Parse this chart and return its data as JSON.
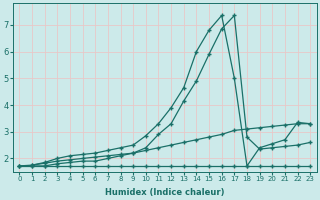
{
  "xlabel": "Humidex (Indice chaleur)",
  "background_color": "#cceaea",
  "grid_color": "#e8c8c8",
  "line_color": "#1a7068",
  "xlim": [
    -0.5,
    23.5
  ],
  "ylim": [
    1.5,
    7.8
  ],
  "yticks": [
    2,
    3,
    4,
    5,
    6,
    7
  ],
  "xticks": [
    0,
    1,
    2,
    3,
    4,
    5,
    6,
    7,
    8,
    9,
    10,
    11,
    12,
    13,
    14,
    15,
    16,
    17,
    18,
    19,
    20,
    21,
    22,
    23
  ],
  "line1_x": [
    0,
    1,
    2,
    3,
    4,
    5,
    6,
    7,
    8,
    9,
    10,
    11,
    12,
    13,
    14,
    15,
    16,
    17,
    18,
    19,
    20,
    21,
    22,
    23
  ],
  "line1_y": [
    1.72,
    1.72,
    1.72,
    1.72,
    1.72,
    1.72,
    1.72,
    1.72,
    1.72,
    1.72,
    1.72,
    1.72,
    1.72,
    1.72,
    1.72,
    1.72,
    1.72,
    1.72,
    1.72,
    1.72,
    1.72,
    1.72,
    1.72,
    1.72
  ],
  "line2_x": [
    0,
    1,
    2,
    3,
    4,
    5,
    6,
    7,
    8,
    9,
    10,
    11,
    12,
    13,
    14,
    15,
    16,
    17,
    18,
    19,
    20,
    21,
    22,
    23
  ],
  "line2_y": [
    1.72,
    1.75,
    1.82,
    1.9,
    1.95,
    2.0,
    2.05,
    2.1,
    2.15,
    2.2,
    2.3,
    2.4,
    2.5,
    2.6,
    2.7,
    2.8,
    2.9,
    3.05,
    3.1,
    3.15,
    3.2,
    3.25,
    3.3,
    3.3
  ],
  "line3_x": [
    1,
    2,
    3,
    4,
    5,
    6,
    7,
    8,
    9,
    10,
    11,
    12,
    13,
    14,
    15,
    16,
    17,
    18,
    19,
    20,
    21,
    22,
    23
  ],
  "line3_y": [
    1.75,
    1.85,
    2.0,
    2.1,
    2.15,
    2.2,
    2.3,
    2.4,
    2.5,
    2.85,
    3.3,
    3.9,
    4.65,
    6.0,
    6.8,
    7.35,
    5.0,
    1.72,
    2.4,
    2.55,
    2.7,
    3.35,
    3.3
  ],
  "line4_x": [
    0,
    1,
    2,
    3,
    4,
    5,
    6,
    7,
    8,
    9,
    10,
    11,
    12,
    13,
    14,
    15,
    16,
    17,
    18,
    19,
    20,
    21,
    22,
    23
  ],
  "line4_y": [
    1.72,
    1.72,
    1.72,
    1.8,
    1.85,
    1.9,
    1.9,
    2.0,
    2.1,
    2.2,
    2.4,
    2.9,
    3.3,
    4.15,
    4.9,
    5.9,
    6.85,
    7.35,
    2.8,
    2.35,
    2.4,
    2.45,
    2.5,
    2.6
  ]
}
